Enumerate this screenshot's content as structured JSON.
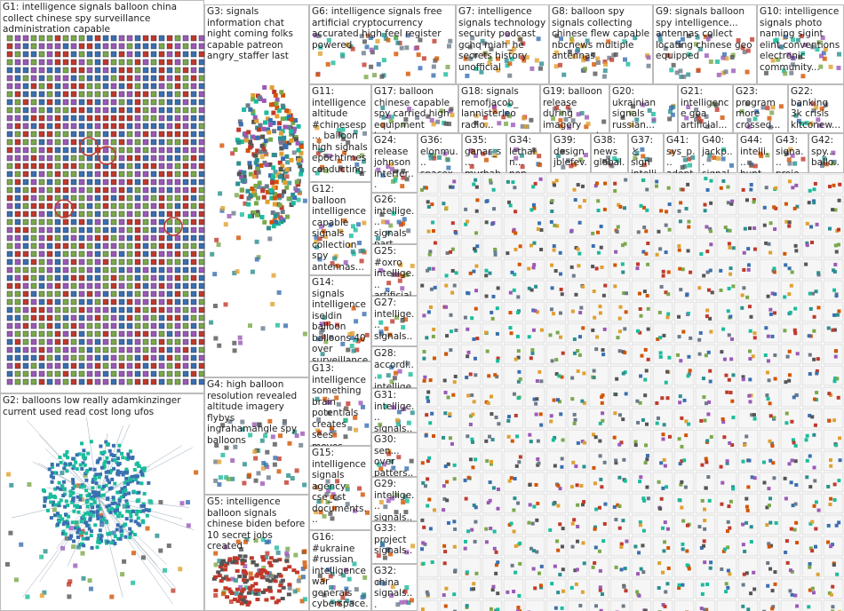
{
  "groups": [
    {
      "label": "G1: intelligence signals balloon china collect chinese spy surveillance administration capable"
    },
    {
      "label": "G2: balloons low really adamkinzinger current used read cost long ufos"
    },
    {
      "label": "G3: signals information chat night coming folks capable patreon angry_staffer last"
    },
    {
      "label": "G4: high balloon resolution revealed altitude imagery flybys ingrahamangle spy balloons"
    },
    {
      "label": "G5: intelligence balloon signals chinese biden before 10 secret jobs created"
    },
    {
      "label": "G6: intelligence signals free artificial cryptocurrency accurated high feel register powered"
    },
    {
      "label": "G7: intelligence signals technology security podcast gchq miah_he secrets history unofficial"
    },
    {
      "label": "G8: balloon spy signals collecting chinese flew capable nbcnews multiple antennas"
    },
    {
      "label": "G9: signals balloon spy intelligence... antennas collect locating chinese geo equipped"
    },
    {
      "label": "G10: intelligence signals photo naming sigint elint conventions electronic community..."
    },
    {
      "label": "G11: intelligence altitude #chinesesp... balloon high signals epochtimes conducting..."
    },
    {
      "label": "G17: balloon chinese capable spy carried high equipment tech..."
    },
    {
      "label": "G18: signals remofjacob_ lannisterleo radio..."
    },
    {
      "label": "G19: balloon release during imagery government..."
    },
    {
      "label": "G20: ukrainian signals russian..."
    },
    {
      "label": "G21: intelligence goa artificial..."
    },
    {
      "label": "G23: program more crossed..."
    },
    {
      "label": "G22: banking 3k crisis kitconew..."
    },
    {
      "label": "G12: balloon intelligence capable signals collection spy antennas..."
    },
    {
      "label": "G14: signals intelligence iseldin balloon balloons 40 over surveillance..."
    },
    {
      "label": "G13: intelligence something brain potentials creates sees moves..."
    },
    {
      "label": "G15: intelligence signals agency cse_cst documents..."
    },
    {
      "label": "G16: #ukraine #russian intelligence war generals cyberspace..."
    },
    {
      "label": "G24: release johnson interfer..."
    },
    {
      "label": "G26: intellige... signals part..."
    },
    {
      "label": "G25: #oxro intellige... artificial..."
    },
    {
      "label": "G27: intellige... signals..."
    },
    {
      "label": "G28: accordi... intellige..."
    },
    {
      "label": "G31: intellige... signals..."
    },
    {
      "label": "G30: sen... over patters..."
    },
    {
      "label": "G29: intellige... signals..."
    },
    {
      "label": "G33: project signals..."
    },
    {
      "label": "G32: china signals..."
    },
    {
      "label": "G36: elonmu... spacex..."
    },
    {
      "label": "G35: ganar_s... murhab..."
    },
    {
      "label": "G34: lethal n... non..."
    },
    {
      "label": "G39: design jblefev..."
    },
    {
      "label": "G38: news global..."
    },
    {
      "label": "G37: と sign intellig..."
    },
    {
      "label": "G41: sys_p... adopt..."
    },
    {
      "label": "G40: jackp... signal..."
    },
    {
      "label": "G44: intelli... hunt..."
    },
    {
      "label": "G43: signa... proje..."
    },
    {
      "label": "G42: spy... ballo..."
    }
  ]
}
